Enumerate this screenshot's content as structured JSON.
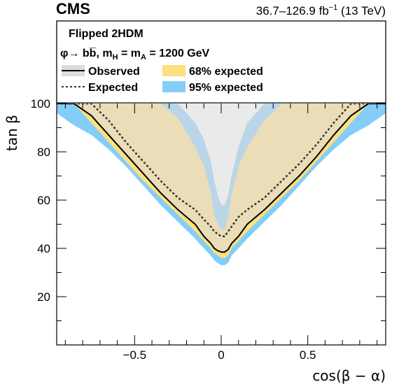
{
  "chart_data": {
    "type": "area",
    "experiment_label": "CMS",
    "lumi_label": "36.7–126.9 fb",
    "lumi_exponent": "−1",
    "energy_label": " (13 TeV)",
    "xlabel": "cos(β − α)",
    "ylabel": "tan β",
    "xlim": [
      -0.95,
      0.95
    ],
    "ylim": [
      0,
      100
    ],
    "xticks": [
      -0.5,
      0,
      0.5
    ],
    "xtick_labels": [
      "−0.5",
      "0",
      "0.5"
    ],
    "yticks": [
      20,
      40,
      60,
      80,
      100
    ],
    "ytick_labels": [
      "20",
      "40",
      "60",
      "80",
      "100"
    ],
    "legend": {
      "header": "Flipped 2HDM",
      "process": "φ→ bb̅, m",
      "entries": [
        {
          "label": "Observed"
        },
        {
          "label": "68% expected"
        },
        {
          "label": "Expected"
        },
        {
          "label": "95% expected"
        }
      ]
    },
    "colors": {
      "excluded": "#dcdcdc",
      "band95": "#85cdf9",
      "band68": "#ffdf7f",
      "observed": "#000000",
      "expected": "#333333"
    },
    "curves": {
      "x": [
        -0.95,
        -0.85,
        -0.75,
        -0.65,
        -0.55,
        -0.45,
        -0.35,
        -0.25,
        -0.15,
        -0.1,
        -0.06,
        -0.04,
        -0.02,
        0.0,
        0.02,
        0.04,
        0.06,
        0.1,
        0.15,
        0.25,
        0.35,
        0.45,
        0.55,
        0.65,
        0.75,
        0.85,
        0.95
      ],
      "band95_upper": [
        100,
        100,
        100,
        100,
        100,
        100,
        100,
        100,
        92,
        85,
        76,
        68,
        62,
        58,
        58,
        62,
        70,
        82,
        92,
        100,
        100,
        100,
        100,
        100,
        100,
        100,
        100
      ],
      "band68_upper": [
        100,
        100,
        100,
        100,
        100,
        100,
        100,
        94,
        82,
        74,
        63,
        54,
        50,
        48,
        48,
        53,
        62,
        74,
        82,
        93,
        100,
        100,
        100,
        100,
        100,
        100,
        100
      ],
      "expected": [
        100,
        100,
        100,
        93,
        84,
        76,
        68,
        61,
        56,
        52,
        49,
        47,
        46,
        45,
        45,
        47,
        49,
        53,
        56,
        61,
        68,
        75,
        83,
        92,
        100,
        100,
        100
      ],
      "observed": [
        100,
        100,
        95,
        87,
        79,
        71,
        63,
        56,
        50,
        45,
        42,
        40,
        39,
        38.5,
        38.5,
        39.5,
        42,
        45,
        50,
        56,
        63,
        70,
        78,
        87,
        95,
        100,
        100
      ],
      "band68_lower": [
        100,
        100,
        92,
        84,
        76,
        68,
        61,
        54,
        47,
        43,
        40,
        38,
        37,
        36,
        36,
        37,
        40,
        43,
        47,
        54,
        61,
        68,
        76,
        84,
        92,
        100,
        100
      ],
      "band95_lower": [
        96,
        91,
        87,
        81,
        74,
        66,
        58,
        51,
        44,
        40,
        37,
        35,
        34,
        33,
        33,
        34,
        37,
        40,
        44,
        51,
        58,
        66,
        74,
        81,
        87,
        91,
        96
      ]
    }
  }
}
